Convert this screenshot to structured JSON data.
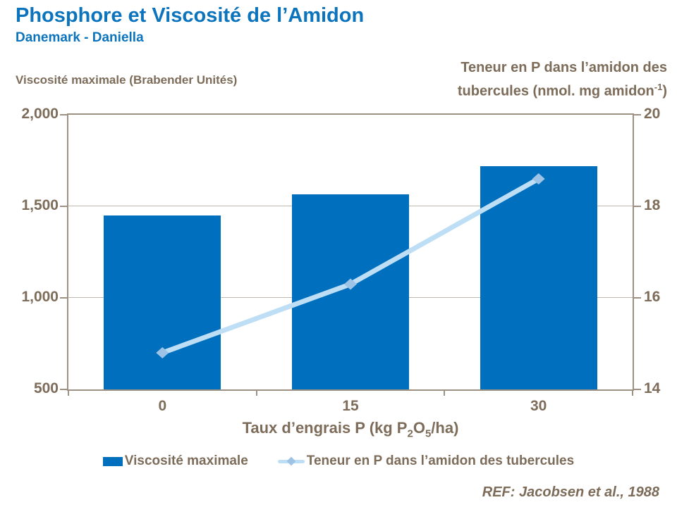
{
  "header": {
    "title": "Phosphore et Viscosité de l’Amidon",
    "subtitle": "Danemark - Daniella"
  },
  "axis_titles": {
    "left": "Viscosité maximale (Brabender Unités)",
    "right_line1": "Teneur en P dans l’amidon des",
    "right_line2_pre": "tubercules (nmol. mg amidon",
    "right_line2_sup": "-1",
    "right_line2_post": ")",
    "x_pre": "Taux d’engrais P (kg P",
    "x_sub1": "2",
    "x_mid": "O",
    "x_sub2": "5",
    "x_post": "/ha)"
  },
  "chart_data": {
    "type": "bar",
    "categories": [
      "0",
      "15",
      "30"
    ],
    "series": [
      {
        "name": "Viscosité maximale",
        "type": "bar",
        "axis": "left",
        "values": [
          1450,
          1565,
          1720
        ],
        "color": "#0070BE"
      },
      {
        "name": "Teneur en P dans l’amidon des tubercules",
        "type": "line",
        "axis": "right",
        "values": [
          14.8,
          16.3,
          18.6
        ],
        "color": "#BDDEF5",
        "marker": "diamond",
        "marker_color": "#9DC3E6"
      }
    ],
    "title": "Phosphore et Viscosité de l’Amidon",
    "left_axis": {
      "label": "Viscosité maximale (Brabender Unités)",
      "range": [
        500,
        2000
      ],
      "ticks": [
        2000,
        1500,
        1000,
        500
      ],
      "tick_labels": [
        "2,000",
        "1,500",
        "1,000",
        "500"
      ]
    },
    "right_axis": {
      "label": "Teneur en P dans l’amidon des tubercules (nmol. mg amidon-1)",
      "range": [
        14,
        20
      ],
      "ticks": [
        20,
        18,
        16,
        14
      ],
      "tick_labels": [
        "20",
        "18",
        "16",
        "14"
      ]
    },
    "x_axis": {
      "label": "Taux d’engrais P (kg P2O5/ha)",
      "tick_labels": [
        "0",
        "15",
        "30"
      ]
    },
    "grid": "horizontal",
    "legend_position": "bottom"
  },
  "legend": {
    "items": [
      {
        "label": "Viscosité maximale"
      },
      {
        "label": "Teneur en P dans l’amidon des tubercules"
      }
    ]
  },
  "footnote": "REF: Jacobsen et al., 1988",
  "colors": {
    "title_blue": "#0C74BD",
    "bar_blue": "#0070BE",
    "line_light_blue": "#BDDEF5",
    "marker_blue": "#9DC3E6",
    "axis_taupe": "#7D6C59",
    "frame_taupe": "#9D9183",
    "gridline_taupe": "#C0B9AE"
  }
}
